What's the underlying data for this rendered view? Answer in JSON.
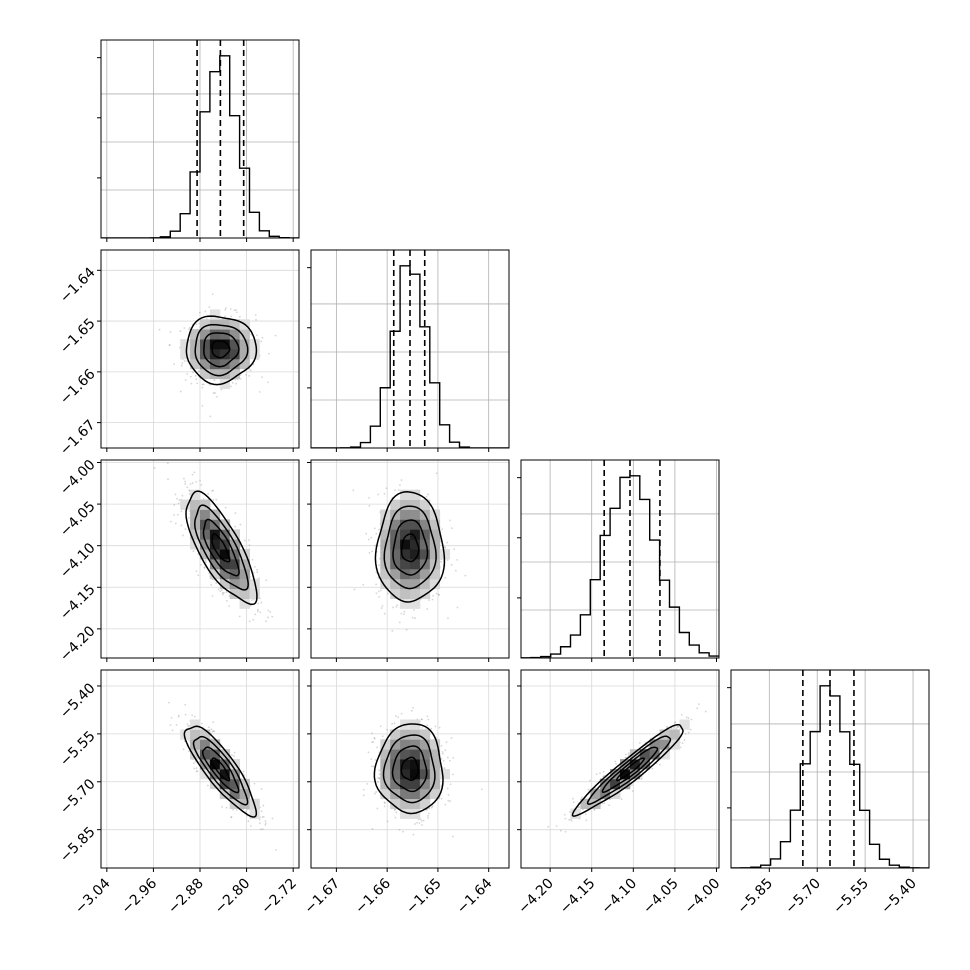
{
  "chart_data": {
    "type": "corner",
    "parameters": [
      {
        "range": [
          -3.05,
          -2.71
        ],
        "ticks": [
          -3.04,
          -2.96,
          -2.88,
          -2.8,
          -2.72
        ],
        "tick_labels": [
          "−3.04",
          "−2.96",
          "−2.88",
          "−2.80",
          "−2.72"
        ],
        "quantiles": [
          -2.885,
          -2.845,
          -2.805
        ],
        "mean": -2.845,
        "sd": 0.03
      },
      {
        "range": [
          -1.675,
          -1.636
        ],
        "ticks": [
          -1.67,
          -1.66,
          -1.65,
          -1.64
        ],
        "tick_labels": [
          "−1.67",
          "−1.66",
          "−1.65",
          "−1.64"
        ],
        "quantiles": [
          -1.6587,
          -1.6555,
          -1.6526
        ],
        "mean": -1.6555,
        "sd": 0.0033
      },
      {
        "range": [
          -4.235,
          -3.997
        ],
        "ticks": [
          -4.2,
          -4.15,
          -4.1,
          -4.05,
          -4.0
        ],
        "tick_labels": [
          "−4.20",
          "−4.15",
          "−4.10",
          "−4.05",
          "−4.00"
        ],
        "quantiles": [
          -4.135,
          -4.104,
          -4.068
        ],
        "mean": -4.103,
        "sd": 0.033
      },
      {
        "range": [
          -5.97,
          -5.35
        ],
        "ticks": [
          -5.85,
          -5.7,
          -5.55,
          -5.4
        ],
        "tick_labels": [
          "−5.85",
          "−5.70",
          "−5.55",
          "−5.40"
        ],
        "quantiles": [
          -5.745,
          -5.66,
          -5.585
        ],
        "mean": -5.66,
        "sd": 0.07
      }
    ],
    "correlations": [
      [
        1.0,
        0.0,
        -0.75,
        -0.85
      ],
      [
        0.0,
        1.0,
        0.0,
        0.0
      ],
      [
        -0.75,
        0.0,
        1.0,
        0.95
      ],
      [
        -0.85,
        0.0,
        0.95,
        1.0
      ]
    ],
    "histogram_bins": 20,
    "contour_levels_sigma": [
      0.5,
      1.0,
      1.5,
      2.0
    ],
    "grid": true
  }
}
